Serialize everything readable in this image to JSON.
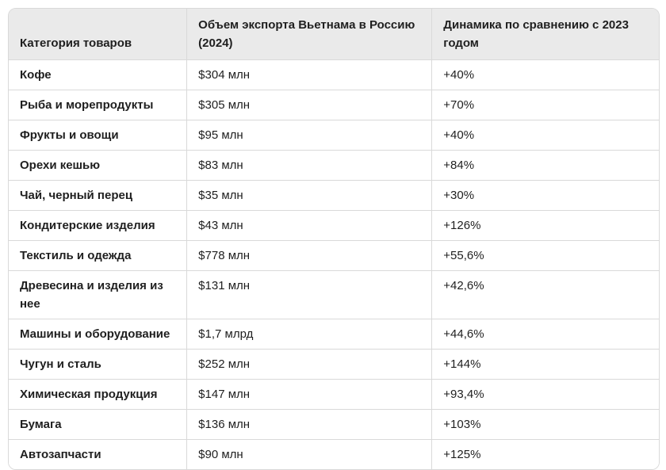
{
  "chart_data": {
    "type": "table",
    "columns": [
      "Категория товаров",
      "Объем экспорта Вьетнама в Россию (2024)",
      "Динамика по сравнению с 2023 годом"
    ],
    "rows": [
      [
        "Кофе",
        "$304 млн",
        "+40%"
      ],
      [
        "Рыба и морепродукты",
        "$305 млн",
        "+70%"
      ],
      [
        "Фрукты и овощи",
        "$95 млн",
        "+40%"
      ],
      [
        "Орехи кешью",
        "$83 млн",
        "+84%"
      ],
      [
        "Чай, черный перец",
        "$35 млн",
        "+30%"
      ],
      [
        "Кондитерские изделия",
        "$43 млн",
        "+126%"
      ],
      [
        "Текстиль и одежда",
        "$778 млн",
        "+55,6%"
      ],
      [
        "Древесина и изделия из нее",
        "$131 млн",
        "+42,6%"
      ],
      [
        "Машины и оборудование",
        "$1,7 млрд",
        "+44,6%"
      ],
      [
        "Чугун и сталь",
        "$252 млн",
        "+144%"
      ],
      [
        "Химическая продукция",
        "$147 млн",
        "+93,4%"
      ],
      [
        "Бумага",
        "$136 млн",
        "+103%"
      ],
      [
        "Автозапчасти",
        "$90 млн",
        "+125%"
      ]
    ]
  },
  "colors": {
    "header_bg": "#eaeaea",
    "border": "#d9d9d9",
    "text": "#1f1f1f",
    "page_bg": "#ffffff"
  }
}
